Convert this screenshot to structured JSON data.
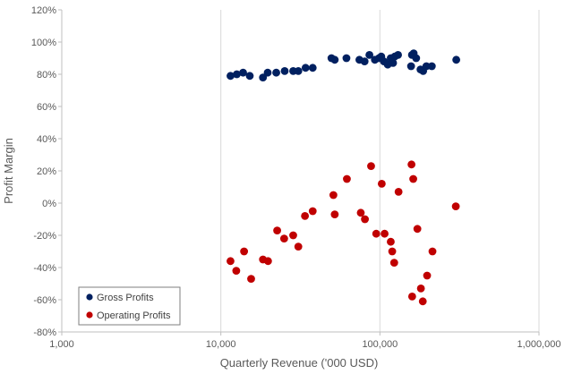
{
  "chart_data": {
    "type": "scatter",
    "xscale": "log",
    "xlim": [
      1000,
      1000000
    ],
    "ylim": [
      -80,
      120
    ],
    "xlabel": "Quarterly Revenue ('000 USD)",
    "ylabel": "Profit Margin",
    "x_ticks": [
      1000,
      10000,
      100000,
      1000000
    ],
    "x_tick_labels": [
      "1,000",
      "10,000",
      "100,000",
      "1,000,000"
    ],
    "y_ticks": [
      -80,
      -60,
      -40,
      -20,
      0,
      20,
      40,
      60,
      80,
      100,
      120
    ],
    "y_tick_labels": [
      "-80%",
      "-60%",
      "-40%",
      "-20%",
      "0%",
      "20%",
      "40%",
      "60%",
      "80%",
      "100%",
      "120%"
    ],
    "grid": "vertical",
    "legend_position": "bottom-left",
    "series": [
      {
        "name": "Gross Profits",
        "color": "#002060",
        "points": [
          [
            11500,
            79
          ],
          [
            12600,
            80
          ],
          [
            13800,
            81
          ],
          [
            15200,
            79
          ],
          [
            18400,
            78
          ],
          [
            19700,
            81
          ],
          [
            22300,
            81
          ],
          [
            25200,
            82
          ],
          [
            28500,
            82
          ],
          [
            30700,
            82
          ],
          [
            34100,
            84
          ],
          [
            37800,
            84
          ],
          [
            49600,
            90
          ],
          [
            52000,
            89
          ],
          [
            61600,
            90
          ],
          [
            74300,
            89
          ],
          [
            80100,
            88
          ],
          [
            85900,
            92
          ],
          [
            93000,
            89
          ],
          [
            98700,
            90
          ],
          [
            102000,
            91
          ],
          [
            106000,
            88
          ],
          [
            112000,
            86
          ],
          [
            117000,
            90
          ],
          [
            121000,
            87
          ],
          [
            124000,
            91
          ],
          [
            130000,
            92
          ],
          [
            157000,
            85
          ],
          [
            159000,
            92
          ],
          [
            163000,
            93
          ],
          [
            169000,
            90
          ],
          [
            180000,
            83
          ],
          [
            187000,
            82
          ],
          [
            196000,
            85
          ],
          [
            212000,
            85
          ],
          [
            302000,
            89
          ]
        ]
      },
      {
        "name": "Operating Profits",
        "color": "#C00000",
        "points": [
          [
            11500,
            -36
          ],
          [
            12500,
            -42
          ],
          [
            14000,
            -30
          ],
          [
            15500,
            -47
          ],
          [
            18400,
            -35
          ],
          [
            19800,
            -36
          ],
          [
            22600,
            -17
          ],
          [
            25000,
            -22
          ],
          [
            28500,
            -20
          ],
          [
            30700,
            -27
          ],
          [
            33800,
            -8
          ],
          [
            37800,
            -5
          ],
          [
            51000,
            5
          ],
          [
            52000,
            -7
          ],
          [
            62000,
            15
          ],
          [
            75800,
            -6
          ],
          [
            80500,
            -10
          ],
          [
            88000,
            23
          ],
          [
            94800,
            -19
          ],
          [
            102700,
            12
          ],
          [
            107000,
            -19
          ],
          [
            117000,
            -24
          ],
          [
            119500,
            -30
          ],
          [
            123000,
            -37
          ],
          [
            131000,
            7
          ],
          [
            158000,
            24
          ],
          [
            159500,
            -58
          ],
          [
            162000,
            15
          ],
          [
            172000,
            -16
          ],
          [
            181000,
            -53
          ],
          [
            186000,
            -61
          ],
          [
            198000,
            -45
          ],
          [
            214000,
            -30
          ],
          [
            300000,
            -2
          ]
        ]
      }
    ]
  }
}
